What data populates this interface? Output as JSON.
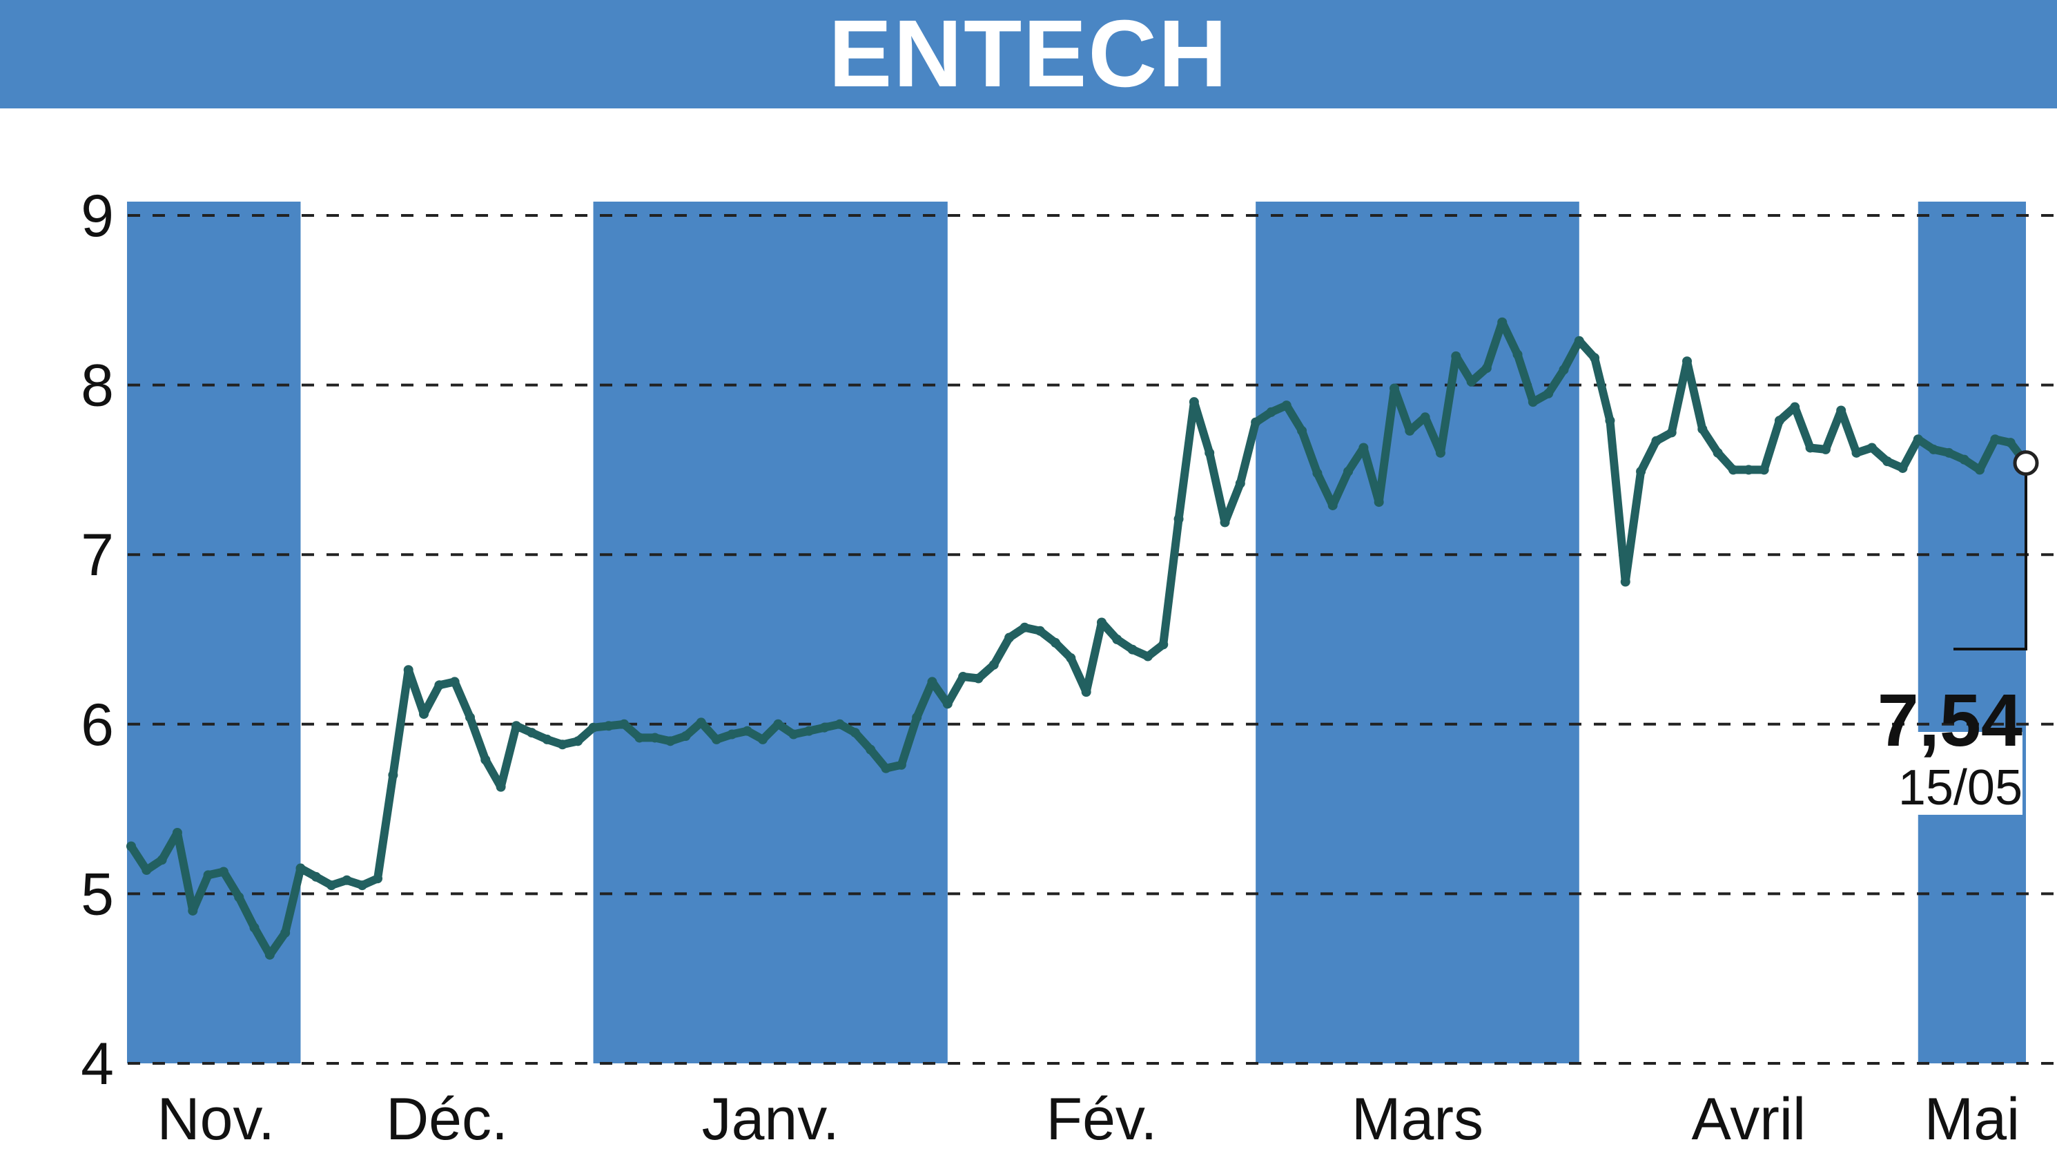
{
  "chart_data": {
    "type": "line",
    "title": "ENTECH",
    "ylim": [
      4,
      9
    ],
    "yticks": [
      "4",
      "5",
      "6",
      "7",
      "8",
      "9"
    ],
    "grid": true,
    "months": [
      "Nov.",
      "Déc.",
      "Janv.",
      "Fév.",
      "Mars",
      "Avril",
      "Mai"
    ],
    "series": [
      {
        "values": [
          5.28,
          5.14,
          5.2,
          5.36,
          4.9,
          5.11,
          5.13,
          4.98,
          4.8,
          4.64,
          4.77,
          5.15,
          5.1,
          5.05,
          5.08,
          5.05,
          5.09,
          5.7,
          6.32,
          6.06,
          6.23,
          6.25,
          6.04,
          5.79,
          5.63,
          5.99,
          5.95,
          5.91,
          5.88,
          5.9,
          5.98,
          5.99,
          6.0,
          5.92,
          5.92,
          5.9,
          5.93,
          6.01,
          5.91,
          5.94,
          5.96,
          5.91,
          6.0,
          5.94,
          5.96,
          5.98,
          6.0,
          5.95,
          5.85,
          5.74,
          5.76,
          6.04,
          6.25,
          6.12,
          6.28,
          6.27,
          6.35,
          6.51,
          6.57,
          6.55,
          6.48,
          6.39,
          6.19,
          6.6,
          6.5,
          6.44,
          6.4,
          6.47,
          7.21,
          7.9,
          7.6,
          7.19,
          7.42,
          7.78,
          7.84,
          7.88,
          7.73,
          7.48,
          7.29,
          7.49,
          7.63,
          7.31,
          7.98,
          7.73,
          7.81,
          7.6,
          8.17,
          8.02,
          8.1,
          8.37,
          8.18,
          7.9,
          7.95,
          8.09,
          8.26,
          8.16,
          7.79,
          6.84,
          7.49,
          7.67,
          7.72,
          8.14,
          7.74,
          7.6,
          7.5,
          7.5,
          7.5,
          7.79,
          7.87,
          7.63,
          7.62,
          7.85,
          7.6,
          7.63,
          7.55,
          7.51,
          7.68,
          7.62,
          7.6,
          7.56,
          7.5,
          7.68,
          7.66,
          7.54
        ]
      }
    ],
    "last_value": "7,54",
    "last_date": "15/05",
    "colors": {
      "header": "#4a86c4",
      "month_band": "#4a86c4",
      "line": "#226060",
      "grid": "#222222"
    }
  }
}
